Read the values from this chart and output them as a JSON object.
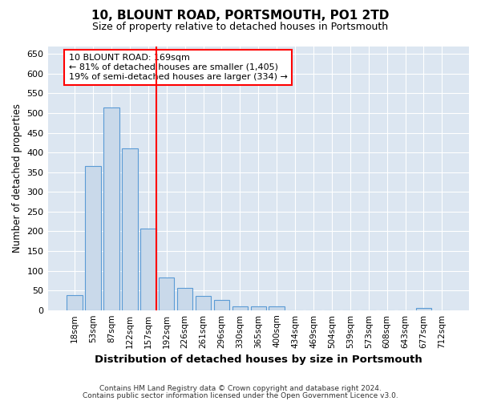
{
  "title": "10, BLOUNT ROAD, PORTSMOUTH, PO1 2TD",
  "subtitle": "Size of property relative to detached houses in Portsmouth",
  "xlabel": "Distribution of detached houses by size in Portsmouth",
  "ylabel": "Number of detached properties",
  "footnote1": "Contains HM Land Registry data © Crown copyright and database right 2024.",
  "footnote2": "Contains public sector information licensed under the Open Government Licence v3.0.",
  "bar_color": "#c9d9ea",
  "bar_edge_color": "#5b9bd5",
  "plot_bg_color": "#dce6f1",
  "fig_bg_color": "#ffffff",
  "grid_color": "#ffffff",
  "categories": [
    "18sqm",
    "53sqm",
    "87sqm",
    "122sqm",
    "157sqm",
    "192sqm",
    "226sqm",
    "261sqm",
    "296sqm",
    "330sqm",
    "365sqm",
    "400sqm",
    "434sqm",
    "469sqm",
    "504sqm",
    "539sqm",
    "573sqm",
    "608sqm",
    "643sqm",
    "677sqm",
    "712sqm"
  ],
  "values": [
    38,
    365,
    515,
    410,
    207,
    83,
    57,
    37,
    25,
    10,
    10,
    10,
    0,
    0,
    0,
    0,
    0,
    0,
    0,
    5,
    0
  ],
  "ylim": [
    0,
    670
  ],
  "yticks": [
    0,
    50,
    100,
    150,
    200,
    250,
    300,
    350,
    400,
    450,
    500,
    550,
    600,
    650
  ],
  "property_label": "10 BLOUNT ROAD: 169sqm",
  "annotation_line1": "← 81% of detached houses are smaller (1,405)",
  "annotation_line2": "19% of semi-detached houses are larger (334) →",
  "red_line_x": 4.343
}
